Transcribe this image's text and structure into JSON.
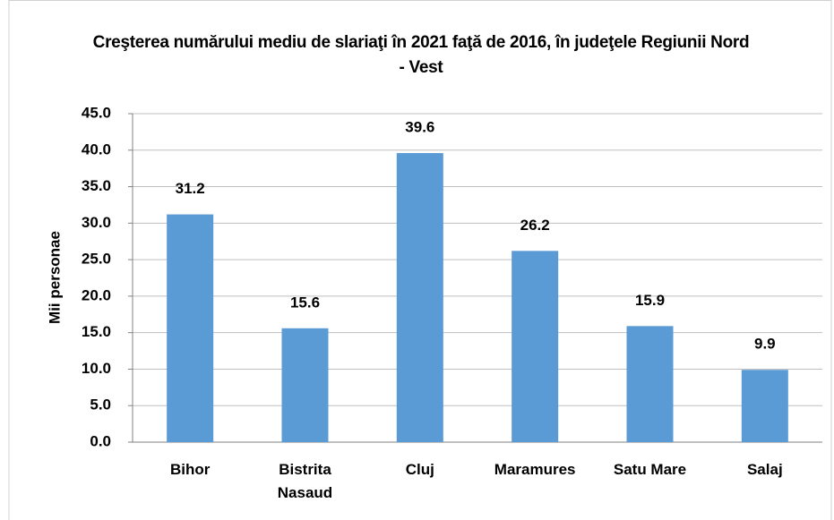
{
  "chart_data": {
    "type": "bar",
    "title": "Creşterea numărului mediu de slariaţi în 2021 faţă de 2016, în judeţele Regiunii Nord - Vest",
    "y_label": "Mii personae",
    "categories": [
      "Bihor",
      "Bistrita Nasaud",
      "Cluj",
      "Maramures",
      "Satu Mare",
      "Salaj"
    ],
    "values": [
      31.2,
      15.6,
      39.6,
      26.2,
      15.9,
      9.9
    ],
    "color": "#5b9bd5",
    "ylim": [
      0,
      45
    ],
    "yticks": [
      {
        "value": 0,
        "label": "0.0"
      },
      {
        "value": 5,
        "label": "5.0"
      },
      {
        "value": 10,
        "label": "10.0"
      },
      {
        "value": 15,
        "label": "15.0"
      },
      {
        "value": 20,
        "label": "20.0"
      },
      {
        "value": 25,
        "label": "25.0"
      },
      {
        "value": 30,
        "label": "30.0"
      },
      {
        "value": 35,
        "label": "35.0"
      },
      {
        "value": 40,
        "label": "40.0"
      },
      {
        "value": 45,
        "label": "45.0"
      }
    ],
    "grid": true
  }
}
